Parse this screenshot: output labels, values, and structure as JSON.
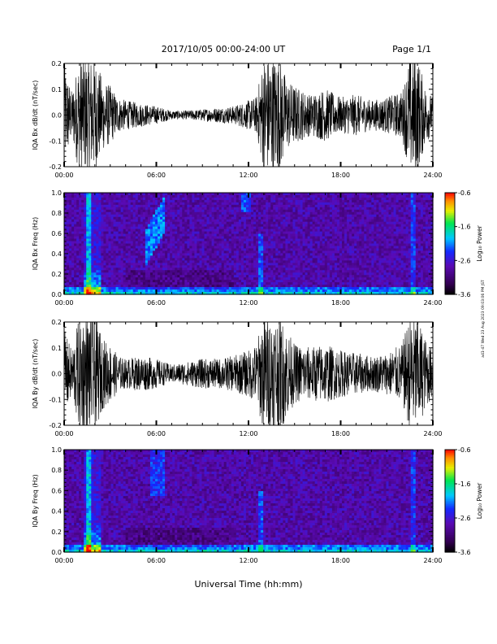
{
  "header": {
    "title": "2017/10/05  00:00-24:00 UT",
    "page": "Page 1/1"
  },
  "side_stamp": "a41-47 Wed 23 Aug 2023 09:03:06 PM JST",
  "footer": {
    "xlabel": "Universal Time (hh:mm)"
  },
  "chart_data": [
    {
      "type": "line",
      "name": "bx-waveform",
      "ylabel": "IQA Bx dB/dt (nT/sec)",
      "ylim": [
        -0.2,
        0.2
      ],
      "yticks": [
        "0.2",
        "0.1",
        "0.0",
        "-0.1",
        "-0.2"
      ],
      "xlim": [
        0,
        24
      ],
      "xticks": [
        "00:00",
        "06:00",
        "12:00",
        "18:00",
        "24:00"
      ],
      "envelope": {
        "hours": [
          0,
          0.5,
          1,
          1.5,
          2,
          2.5,
          3,
          3.5,
          4,
          5,
          6,
          7,
          8,
          9,
          10,
          11,
          11.5,
          12,
          12.5,
          13,
          13.5,
          14,
          14.5,
          15,
          16,
          17,
          18,
          19,
          20,
          21,
          22,
          22.5,
          23,
          23.5,
          24
        ],
        "amplitude": [
          0.18,
          0.08,
          0.2,
          0.2,
          0.2,
          0.12,
          0.1,
          0.06,
          0.05,
          0.04,
          0.03,
          0.015,
          0.015,
          0.02,
          0.025,
          0.03,
          0.04,
          0.05,
          0.06,
          0.2,
          0.2,
          0.2,
          0.12,
          0.1,
          0.07,
          0.09,
          0.06,
          0.07,
          0.05,
          0.06,
          0.08,
          0.2,
          0.2,
          0.1,
          0.06
        ]
      }
    },
    {
      "type": "heatmap",
      "name": "bx-spectrogram",
      "ylabel": "IQA Bx Freq (Hz)",
      "ylim": [
        0.0,
        1.0
      ],
      "yticks": [
        "1.0",
        "0.8",
        "0.6",
        "0.4",
        "0.2",
        "0.0"
      ],
      "xlim": [
        0,
        24
      ],
      "xticks": [
        "00:00",
        "06:00",
        "12:00",
        "18:00",
        "24:00"
      ],
      "colorbar": {
        "label": "Log₁₀ Power",
        "range": [
          -3.6,
          -0.6
        ],
        "ticks": [
          "-0.6",
          "-1.6",
          "-2.6",
          "-3.6"
        ]
      }
    },
    {
      "type": "line",
      "name": "by-waveform",
      "ylabel": "IQA By dB/dt (nT/sec)",
      "ylim": [
        -0.2,
        0.2
      ],
      "yticks": [
        "0.2",
        "0.1",
        "0.0",
        "-0.1",
        "-0.2"
      ],
      "xlim": [
        0,
        24
      ],
      "xticks": [
        "00:00",
        "06:00",
        "12:00",
        "18:00",
        "24:00"
      ],
      "envelope": {
        "hours": [
          0,
          0.5,
          1,
          1.5,
          2,
          2.5,
          3,
          3.5,
          4,
          5,
          6,
          7,
          8,
          9,
          10,
          11,
          11.5,
          12,
          12.5,
          13,
          13.5,
          14,
          14.5,
          15,
          16,
          17,
          18,
          19,
          20,
          21,
          22,
          22.5,
          23,
          23.5,
          24
        ],
        "amplitude": [
          0.15,
          0.08,
          0.2,
          0.2,
          0.2,
          0.12,
          0.1,
          0.06,
          0.05,
          0.06,
          0.05,
          0.03,
          0.04,
          0.05,
          0.05,
          0.06,
          0.07,
          0.08,
          0.1,
          0.2,
          0.2,
          0.2,
          0.15,
          0.1,
          0.09,
          0.1,
          0.08,
          0.07,
          0.06,
          0.07,
          0.1,
          0.2,
          0.2,
          0.12,
          0.08
        ]
      }
    },
    {
      "type": "heatmap",
      "name": "by-spectrogram",
      "ylabel": "IQA By Freq (Hz)",
      "ylim": [
        0.0,
        1.0
      ],
      "yticks": [
        "1.0",
        "0.8",
        "0.6",
        "0.4",
        "0.2",
        "0.0"
      ],
      "xlim": [
        0,
        24
      ],
      "xticks": [
        "00:00",
        "06:00",
        "12:00",
        "18:00",
        "24:00"
      ],
      "colorbar": {
        "label": "Log₁₀ Power",
        "range": [
          -3.6,
          -0.6
        ],
        "ticks": [
          "-0.6",
          "-1.6",
          "-2.6",
          "-3.6"
        ]
      }
    }
  ]
}
